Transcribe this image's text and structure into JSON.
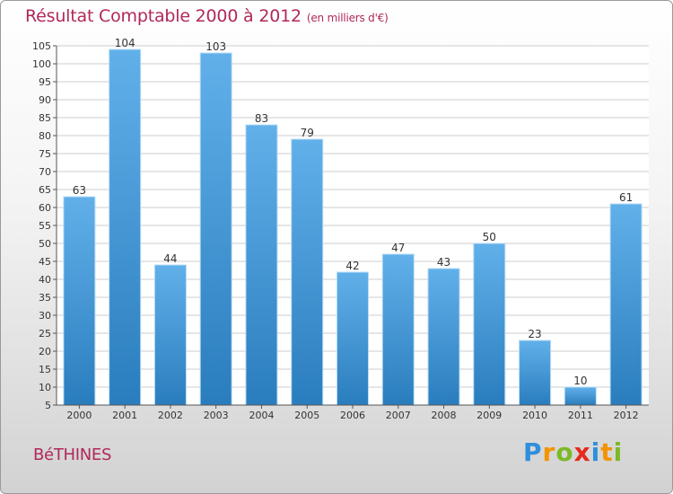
{
  "header": {
    "title": "Résultat Comptable 2000 à 2012",
    "subtitle": "(en milliers d'€)"
  },
  "commune": "BéTHINES",
  "logo": {
    "letters": [
      "P",
      "r",
      "o",
      "x",
      "i",
      "t",
      "i"
    ],
    "colors": [
      "#2f8fdc",
      "#f29400",
      "#7cb928",
      "#e52a1e",
      "#2f8fdc",
      "#f29400",
      "#7cb928"
    ]
  },
  "colors": {
    "title": "#b0285a",
    "bar_top": "#61b0ea",
    "bar_bottom": "#2a7dbd",
    "grid": "#cccccc"
  },
  "chart_data": {
    "type": "bar",
    "title": "Résultat Comptable 2000 à 2012",
    "subtitle": "(en milliers d'€)",
    "categories": [
      "2000",
      "2001",
      "2002",
      "2003",
      "2004",
      "2005",
      "2006",
      "2007",
      "2008",
      "2009",
      "2010",
      "2011",
      "2012"
    ],
    "values": [
      63,
      104,
      44,
      103,
      83,
      79,
      42,
      47,
      43,
      50,
      23,
      10,
      61
    ],
    "ylim": [
      5,
      105
    ],
    "yticks": [
      5,
      10,
      15,
      20,
      25,
      30,
      35,
      40,
      45,
      50,
      55,
      60,
      65,
      70,
      75,
      80,
      85,
      90,
      95,
      100,
      105
    ],
    "grid": true,
    "legend": "none"
  }
}
